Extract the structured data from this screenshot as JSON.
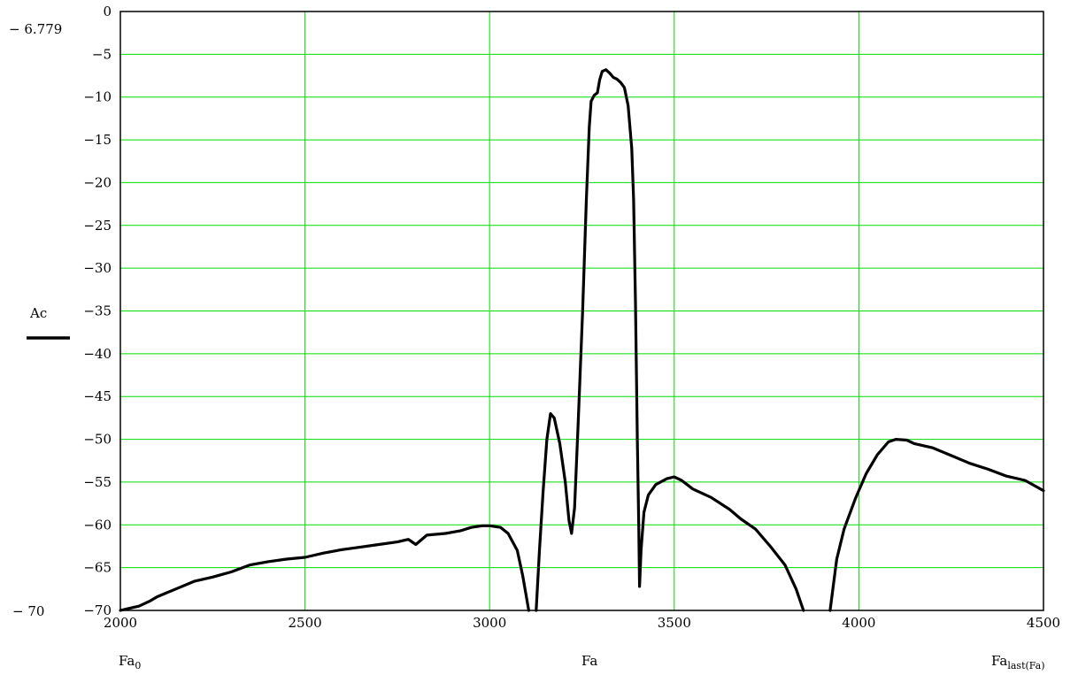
{
  "chart_data": {
    "type": "line",
    "xlim": [
      2000,
      4500
    ],
    "ylim": [
      -70,
      0
    ],
    "xticks": [
      2000,
      2500,
      3000,
      3500,
      4000,
      4500
    ],
    "yticks": [
      0,
      -5,
      -10,
      -15,
      -20,
      -25,
      -30,
      -35,
      -40,
      -45,
      -50,
      -55,
      -60,
      -65,
      -70
    ],
    "x_tick_labels": [
      "2000",
      "2500",
      "3000",
      "3500",
      "4000",
      "4500"
    ],
    "y_tick_labels": [
      "0",
      "−5",
      "−10",
      "−15",
      "−20",
      "−25",
      "−30",
      "−35",
      "−40",
      "−45",
      "−50",
      "−55",
      "−60",
      "−65",
      "−70"
    ],
    "grid": true,
    "y_upper_limit_label": "− 6.779",
    "y_lower_limit_label": "− 70",
    "ylabel": "Ac",
    "x_left_label": {
      "base": "Fa",
      "sub": "0"
    },
    "x_center_label": "Fa",
    "x_right_label": {
      "base": "Fa",
      "sub": "last(Fa)"
    },
    "colors": {
      "grid": "#00dd00",
      "line": "#000000",
      "axis": "#000000"
    },
    "series": [
      {
        "name": "Ac",
        "segments": [
          [
            [
              2000,
              -70
            ],
            [
              2020,
              -69.8
            ],
            [
              2050,
              -69.5
            ],
            [
              2080,
              -68.9
            ],
            [
              2100,
              -68.4
            ],
            [
              2150,
              -67.5
            ],
            [
              2200,
              -66.6
            ],
            [
              2250,
              -66.1
            ],
            [
              2300,
              -65.5
            ],
            [
              2350,
              -64.7
            ],
            [
              2400,
              -64.3
            ],
            [
              2450,
              -64.0
            ],
            [
              2500,
              -63.8
            ],
            [
              2550,
              -63.3
            ],
            [
              2600,
              -62.9
            ],
            [
              2650,
              -62.6
            ],
            [
              2700,
              -62.3
            ],
            [
              2750,
              -62.0
            ],
            [
              2780,
              -61.7
            ],
            [
              2800,
              -62.3
            ],
            [
              2830,
              -61.2
            ],
            [
              2880,
              -61.0
            ],
            [
              2920,
              -60.7
            ],
            [
              2950,
              -60.3
            ],
            [
              2980,
              -60.1
            ],
            [
              3000,
              -60.1
            ],
            [
              3030,
              -60.3
            ],
            [
              3050,
              -61.0
            ],
            [
              3075,
              -63.0
            ],
            [
              3090,
              -66.0
            ],
            [
              3100,
              -68.5
            ],
            [
              3106,
              -70
            ]
          ],
          [
            [
              3126,
              -70
            ],
            [
              3135,
              -63.0
            ],
            [
              3145,
              -56.0
            ],
            [
              3155,
              -50.0
            ],
            [
              3165,
              -47.0
            ],
            [
              3175,
              -47.5
            ],
            [
              3190,
              -50.5
            ],
            [
              3205,
              -55.0
            ],
            [
              3215,
              -59.5
            ],
            [
              3222,
              -61.0
            ],
            [
              3230,
              -58.0
            ],
            [
              3240,
              -48.0
            ],
            [
              3252,
              -35.0
            ],
            [
              3262,
              -22.0
            ],
            [
              3270,
              -13.5
            ],
            [
              3275,
              -10.5
            ],
            [
              3283,
              -9.8
            ],
            [
              3292,
              -9.5
            ],
            [
              3298,
              -8.0
            ],
            [
              3305,
              -7.0
            ],
            [
              3315,
              -6.8
            ],
            [
              3325,
              -7.2
            ],
            [
              3335,
              -7.7
            ],
            [
              3345,
              -7.9
            ],
            [
              3355,
              -8.3
            ],
            [
              3365,
              -8.9
            ],
            [
              3375,
              -11.0
            ],
            [
              3385,
              -16.0
            ],
            [
              3390,
              -22.0
            ],
            [
              3395,
              -34.0
            ],
            [
              3400,
              -50.0
            ],
            [
              3404,
              -60.0
            ],
            [
              3406,
              -67.2
            ],
            [
              3410,
              -63.0
            ],
            [
              3418,
              -58.5
            ],
            [
              3430,
              -56.5
            ],
            [
              3450,
              -55.3
            ],
            [
              3480,
              -54.6
            ],
            [
              3500,
              -54.4
            ],
            [
              3520,
              -54.8
            ],
            [
              3550,
              -55.8
            ],
            [
              3600,
              -56.8
            ],
            [
              3650,
              -58.2
            ],
            [
              3680,
              -59.3
            ],
            [
              3720,
              -60.5
            ],
            [
              3760,
              -62.5
            ],
            [
              3800,
              -64.7
            ],
            [
              3830,
              -67.5
            ],
            [
              3850,
              -70
            ]
          ],
          [
            [
              3922,
              -70
            ],
            [
              3940,
              -64.0
            ],
            [
              3960,
              -60.5
            ],
            [
              3990,
              -57.0
            ],
            [
              4020,
              -54.0
            ],
            [
              4050,
              -51.8
            ],
            [
              4080,
              -50.3
            ],
            [
              4100,
              -50.0
            ],
            [
              4130,
              -50.1
            ],
            [
              4150,
              -50.5
            ],
            [
              4200,
              -51.0
            ],
            [
              4250,
              -51.9
            ],
            [
              4300,
              -52.8
            ],
            [
              4350,
              -53.5
            ],
            [
              4400,
              -54.3
            ],
            [
              4450,
              -54.8
            ],
            [
              4500,
              -56.0
            ]
          ]
        ]
      }
    ]
  }
}
